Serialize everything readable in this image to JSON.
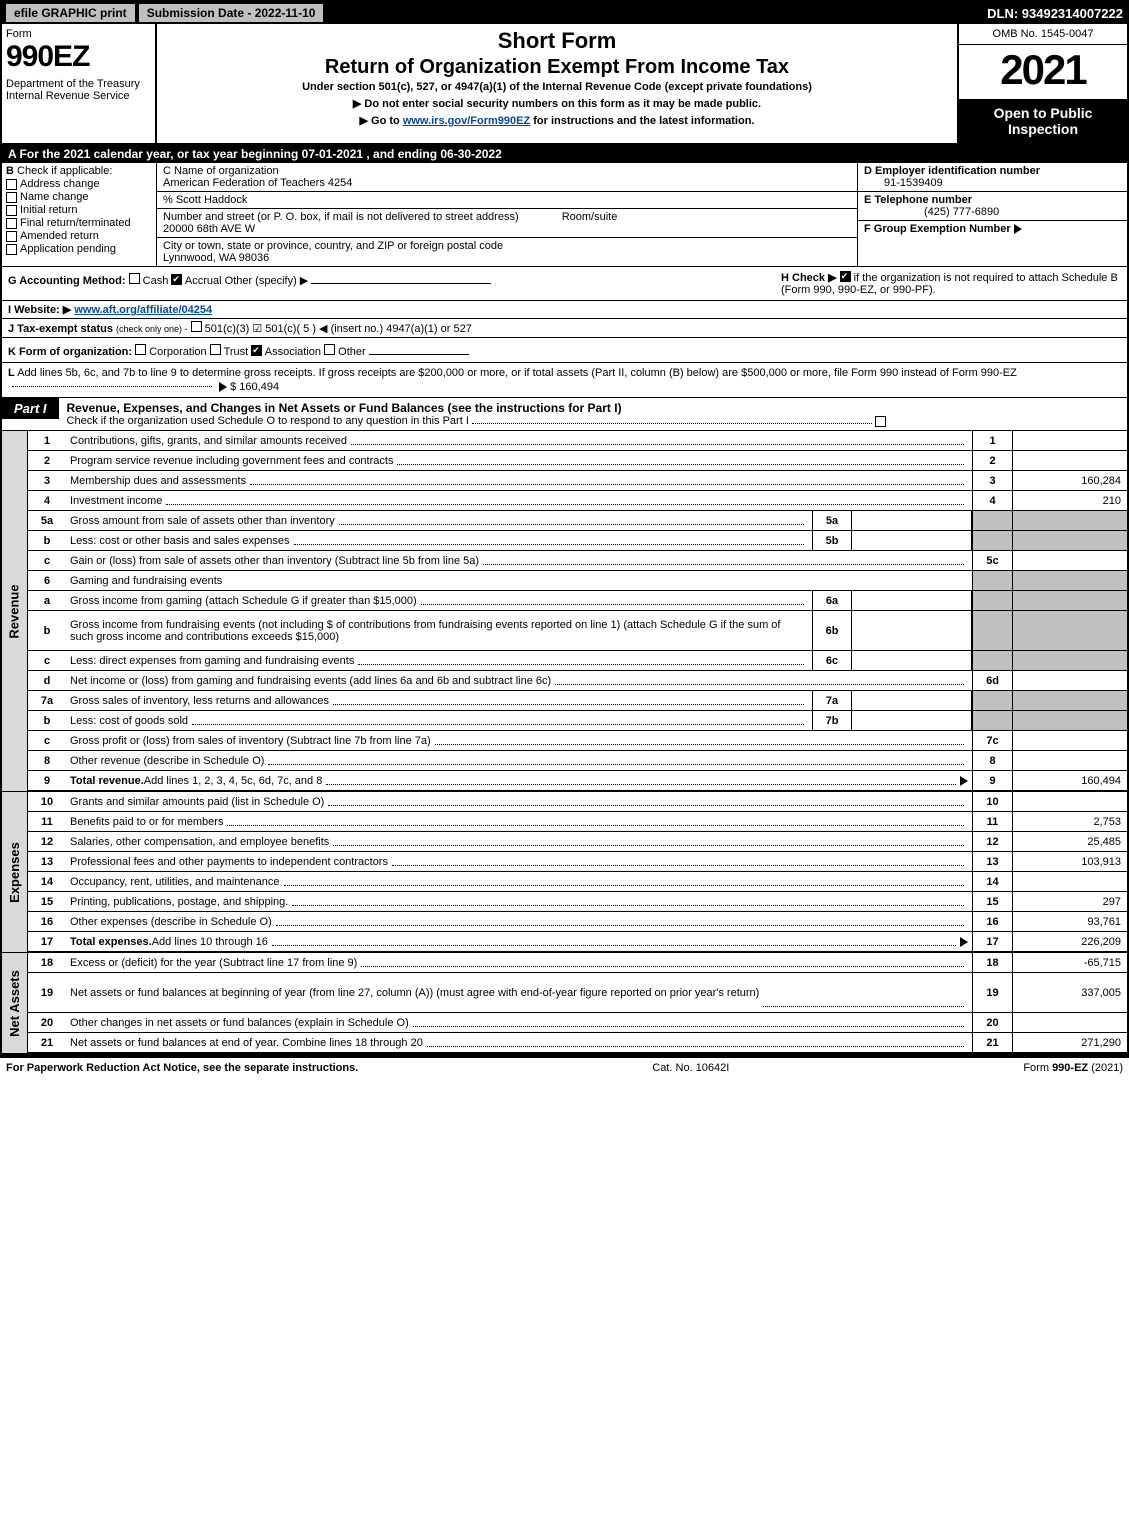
{
  "colors": {
    "black": "#000000",
    "grey": "#bfbfbf",
    "darkgrey": "#d9d9d9",
    "link": "#0048a3",
    "white": "#ffffff"
  },
  "topbar": {
    "btn1": "efile GRAPHIC print",
    "btn2": "Submission Date - 2022-11-10",
    "dln": "DLN: 93492314007222"
  },
  "header": {
    "form": "Form",
    "form_num": "990EZ",
    "dept": "Department of the Treasury\nInternal Revenue Service",
    "short": "Short Form",
    "main_title": "Return of Organization Exempt From Income Tax",
    "und": "Under section 501(c), 527, or 4947(a)(1) of the Internal Revenue Code (except private foundations)",
    "sub1_pre": "▶ Do not enter social security numbers on this form as it may be made public.",
    "sub2_pre": "▶ Go to ",
    "sub2_link": "www.irs.gov/Form990EZ",
    "sub2_post": " for instructions and the latest information.",
    "omb": "OMB No. 1545-0047",
    "year": "2021",
    "open": "Open to Public Inspection"
  },
  "rowA": "A  For the 2021 calendar year, or tax year beginning 07-01-2021 , and ending 06-30-2022",
  "B": {
    "label": "B",
    "check_if": "Check if applicable:",
    "items": [
      {
        "label": "Address change",
        "checked": false
      },
      {
        "label": "Name change",
        "checked": false
      },
      {
        "label": "Initial return",
        "checked": false
      },
      {
        "label": "Final return/terminated",
        "checked": false
      },
      {
        "label": "Amended return",
        "checked": false
      },
      {
        "label": "Application pending",
        "checked": false
      }
    ]
  },
  "C": {
    "name_lbl": "C Name of organization",
    "name": "American Federation of Teachers 4254",
    "care_lbl": "% Scott Haddock",
    "street_lbl": "Number and street (or P. O. box, if mail is not delivered to street address)",
    "room_lbl": "Room/suite",
    "street": "20000 68th AVE W",
    "city_lbl": "City or town, state or province, country, and ZIP or foreign postal code",
    "city": "Lynnwood, WA  98036"
  },
  "D": {
    "lbl": "D Employer identification number",
    "val": "91-1539409"
  },
  "E": {
    "lbl": "E Telephone number",
    "val": "(425) 777-6890"
  },
  "F": {
    "lbl": "F Group Exemption Number",
    "arrow": "▶"
  },
  "G": {
    "lbl": "G Accounting Method:",
    "cash": "Cash",
    "accrual": "Accrual",
    "other": "Other (specify) ▶",
    "cash_checked": false,
    "accrual_checked": true
  },
  "H": {
    "pre": "H  Check ▶ ",
    "checked": true,
    "post": " if the organization is not required to attach Schedule B (Form 990, 990-EZ, or 990-PF)."
  },
  "I": {
    "lbl": "I Website: ▶",
    "val": "www.aft.org/affiliate/04254"
  },
  "J": {
    "lbl": "J Tax-exempt status",
    "small": "(check only one) -",
    "opts": "501(c)(3)   ☑ 501(c)( 5 ) ◀ (insert no.)   4947(a)(1) or   527"
  },
  "K": {
    "lbl": "K Form of organization:",
    "opts": [
      "Corporation",
      "Trust",
      "Association",
      "Other"
    ],
    "checked": 2
  },
  "L": {
    "lbl": "L",
    "text": "Add lines 5b, 6c, and 7b to line 9 to determine gross receipts. If gross receipts are $200,000 or more, or if total assets (Part II, column (B) below) are $500,000 or more, file Form 990 instead of Form 990-EZ",
    "val": "$ 160,494"
  },
  "part1": {
    "label": "Part I",
    "title": "Revenue, Expenses, and Changes in Net Assets or Fund Balances",
    "title_sub": "(see the instructions for Part I)",
    "check_text": "Check if the organization used Schedule O to respond to any question in this Part I",
    "check_checked": false
  },
  "sections": {
    "revenue": {
      "label": "Revenue",
      "lines": [
        {
          "n": "1",
          "desc": "Contributions, gifts, grants, and similar amounts received",
          "rn": "1",
          "rv": ""
        },
        {
          "n": "2",
          "desc": "Program service revenue including government fees and contracts",
          "rn": "2",
          "rv": ""
        },
        {
          "n": "3",
          "desc": "Membership dues and assessments",
          "rn": "3",
          "rv": "160,284"
        },
        {
          "n": "4",
          "desc": "Investment income",
          "rn": "4",
          "rv": "210"
        },
        {
          "n": "5a",
          "desc": "Gross amount from sale of assets other than inventory",
          "mid_n": "5a",
          "mid_v": "",
          "grey": true
        },
        {
          "n": "b",
          "desc": "Less: cost or other basis and sales expenses",
          "mid_n": "5b",
          "mid_v": "",
          "grey": true
        },
        {
          "n": "c",
          "desc": "Gain or (loss) from sale of assets other than inventory (Subtract line 5b from line 5a)",
          "rn": "5c",
          "rv": ""
        },
        {
          "n": "6",
          "desc": "Gaming and fundraising events",
          "nobox": true
        },
        {
          "n": "a",
          "desc": "Gross income from gaming (attach Schedule G if greater than $15,000)",
          "mid_n": "6a",
          "mid_v": "",
          "grey": true
        },
        {
          "n": "b",
          "desc": "Gross income from fundraising events (not including $                  of contributions from fundraising events reported on line 1) (attach Schedule G if the sum of such gross income and contributions exceeds $15,000)",
          "mid_n": "6b",
          "mid_v": "",
          "grey": true,
          "tall": true
        },
        {
          "n": "c",
          "desc": "Less: direct expenses from gaming and fundraising events",
          "mid_n": "6c",
          "mid_v": "",
          "grey": true
        },
        {
          "n": "d",
          "desc": "Net income or (loss) from gaming and fundraising events (add lines 6a and 6b and subtract line 6c)",
          "rn": "6d",
          "rv": ""
        },
        {
          "n": "7a",
          "desc": "Gross sales of inventory, less returns and allowances",
          "mid_n": "7a",
          "mid_v": "",
          "grey": true
        },
        {
          "n": "b",
          "desc": "Less: cost of goods sold",
          "mid_n": "7b",
          "mid_v": "",
          "grey": true
        },
        {
          "n": "c",
          "desc": "Gross profit or (loss) from sales of inventory (Subtract line 7b from line 7a)",
          "rn": "7c",
          "rv": ""
        },
        {
          "n": "8",
          "desc": "Other revenue (describe in Schedule O)",
          "rn": "8",
          "rv": ""
        },
        {
          "n": "9",
          "desc_bold": "Total revenue.",
          "desc": " Add lines 1, 2, 3, 4, 5c, 6d, 7c, and 8",
          "rn": "9",
          "rv": "160,494",
          "arrow": true
        }
      ]
    },
    "expenses": {
      "label": "Expenses",
      "lines": [
        {
          "n": "10",
          "desc": "Grants and similar amounts paid (list in Schedule O)",
          "rn": "10",
          "rv": ""
        },
        {
          "n": "11",
          "desc": "Benefits paid to or for members",
          "rn": "11",
          "rv": "2,753"
        },
        {
          "n": "12",
          "desc": "Salaries, other compensation, and employee benefits",
          "rn": "12",
          "rv": "25,485"
        },
        {
          "n": "13",
          "desc": "Professional fees and other payments to independent contractors",
          "rn": "13",
          "rv": "103,913"
        },
        {
          "n": "14",
          "desc": "Occupancy, rent, utilities, and maintenance",
          "rn": "14",
          "rv": ""
        },
        {
          "n": "15",
          "desc": "Printing, publications, postage, and shipping.",
          "rn": "15",
          "rv": "297"
        },
        {
          "n": "16",
          "desc": "Other expenses (describe in Schedule O)",
          "rn": "16",
          "rv": "93,761"
        },
        {
          "n": "17",
          "desc_bold": "Total expenses.",
          "desc": " Add lines 10 through 16",
          "rn": "17",
          "rv": "226,209",
          "arrow": true
        }
      ]
    },
    "netassets": {
      "label": "Net Assets",
      "lines": [
        {
          "n": "18",
          "desc": "Excess or (deficit) for the year (Subtract line 17 from line 9)",
          "rn": "18",
          "rv": "-65,715"
        },
        {
          "n": "19",
          "desc": "Net assets or fund balances at beginning of year (from line 27, column (A)) (must agree with end-of-year figure reported on prior year's return)",
          "rn": "19",
          "rv": "337,005",
          "tall": true
        },
        {
          "n": "20",
          "desc": "Other changes in net assets or fund balances (explain in Schedule O)",
          "rn": "20",
          "rv": ""
        },
        {
          "n": "21",
          "desc": "Net assets or fund balances at end of year. Combine lines 18 through 20",
          "rn": "21",
          "rv": "271,290"
        }
      ]
    }
  },
  "footer": {
    "left": "For Paperwork Reduction Act Notice, see the separate instructions.",
    "mid": "Cat. No. 10642I",
    "right_pre": "Form ",
    "right_bold": "990-EZ",
    "right_post": " (2021)"
  }
}
